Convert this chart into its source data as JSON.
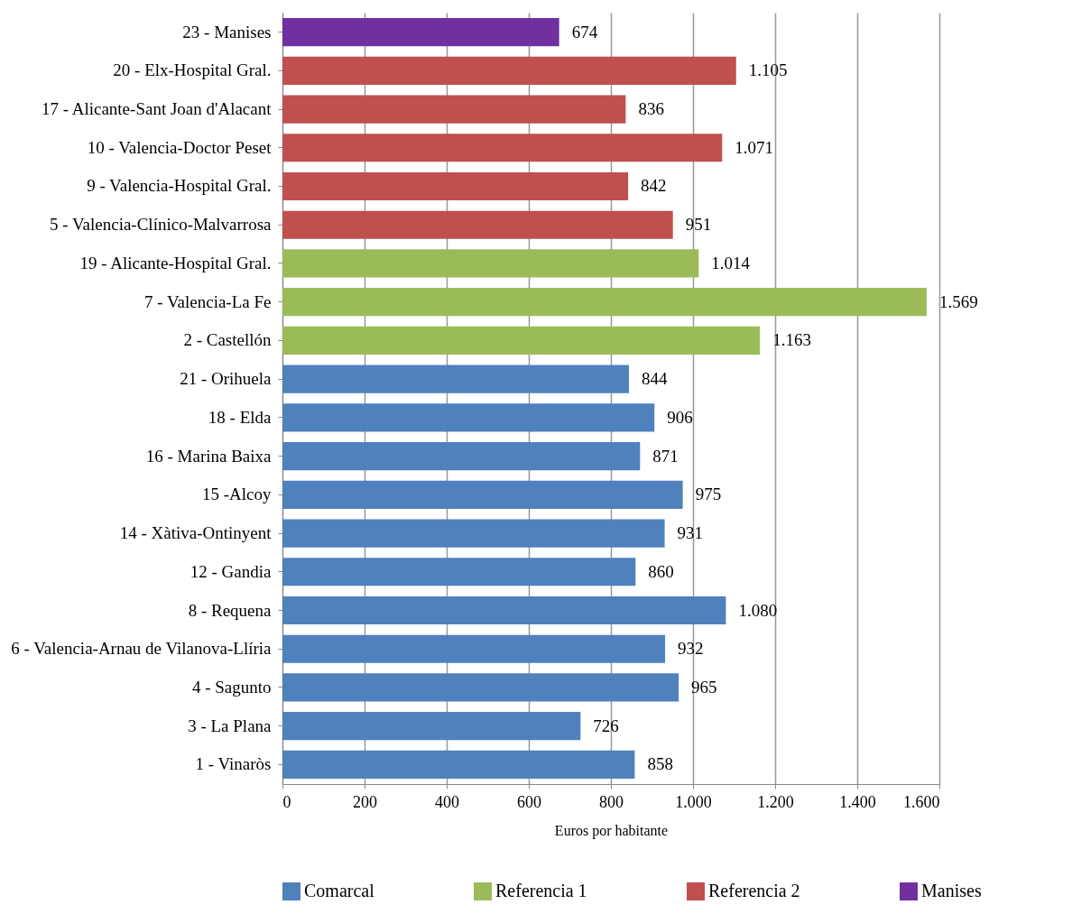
{
  "chart_data": {
    "type": "bar",
    "orientation": "horizontal",
    "xlabel": "Euros por habitante",
    "categories": [
      "23 - Manises",
      "20 - Elx-Hospital Gral.",
      "17 - Alicante-Sant Joan d'Alacant",
      "10 - Valencia-Doctor Peset",
      "9 - Valencia-Hospital Gral.",
      "5 - Valencia-Clínico-Malvarrosa",
      "19 - Alicante-Hospital Gral.",
      "7 - Valencia-La Fe",
      "2 - Castellón",
      "21 - Orihuela",
      "18 - Elda",
      "16 - Marina Baixa",
      "15 -Alcoy",
      "14 - Xàtiva-Ontinyent",
      "12 - Gandia",
      "8 - Requena",
      "6 - Valencia-Arnau de Vilanova-Llíria",
      "4 - Sagunto",
      "3 - La Plana",
      "1 - Vinaròs"
    ],
    "series": [
      {
        "name": "Comarcal",
        "color": "#4f81bd",
        "values": [
          null,
          null,
          null,
          null,
          null,
          null,
          null,
          null,
          null,
          844,
          906,
          871,
          975,
          931,
          860,
          1080,
          932,
          965,
          726,
          858
        ],
        "value_labels": [
          null,
          null,
          null,
          null,
          null,
          null,
          null,
          null,
          null,
          "844",
          "906",
          "871",
          "975",
          "931",
          "860",
          "1.080",
          "932",
          "965",
          "726",
          "858"
        ]
      },
      {
        "name": "Referencia 1",
        "color": "#9bbb59",
        "values": [
          null,
          null,
          null,
          null,
          null,
          null,
          1014,
          1569,
          1163,
          null,
          null,
          null,
          null,
          null,
          null,
          null,
          null,
          null,
          null,
          null
        ],
        "value_labels": [
          null,
          null,
          null,
          null,
          null,
          null,
          "1.014",
          "1.569",
          "1.163",
          null,
          null,
          null,
          null,
          null,
          null,
          null,
          null,
          null,
          null,
          null
        ]
      },
      {
        "name": "Referencia 2",
        "color": "#c0504d",
        "values": [
          null,
          1105,
          836,
          1071,
          842,
          951,
          null,
          null,
          null,
          null,
          null,
          null,
          null,
          null,
          null,
          null,
          null,
          null,
          null,
          null
        ],
        "value_labels": [
          null,
          "1.105",
          "836",
          "1.071",
          "842",
          "951",
          null,
          null,
          null,
          null,
          null,
          null,
          null,
          null,
          null,
          null,
          null,
          null,
          null,
          null
        ]
      },
      {
        "name": "Manises",
        "color": "#7030a0",
        "values": [
          674,
          null,
          null,
          null,
          null,
          null,
          null,
          null,
          null,
          null,
          null,
          null,
          null,
          null,
          null,
          null,
          null,
          null,
          null,
          null
        ],
        "value_labels": [
          "674",
          null,
          null,
          null,
          null,
          null,
          null,
          null,
          null,
          null,
          null,
          null,
          null,
          null,
          null,
          null,
          null,
          null,
          null,
          null
        ]
      }
    ],
    "xlim": [
      0,
      1600
    ],
    "xticks": [
      0,
      200,
      400,
      600,
      800,
      {
        "value": 1000,
        "label": "1.000"
      },
      {
        "value": 1200,
        "label": "1.200"
      },
      {
        "value": 1400,
        "label": "1.400"
      },
      {
        "value": 1600,
        "label": "1.600"
      }
    ],
    "grid": "x",
    "legend": "bottom"
  }
}
